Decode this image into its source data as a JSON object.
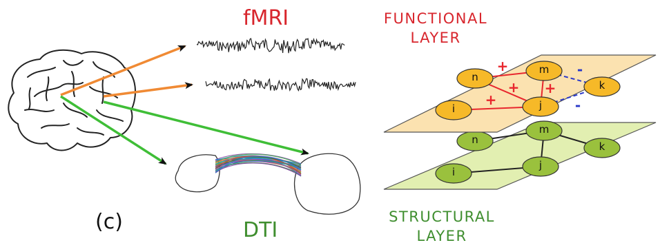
{
  "labels": {
    "fmri": "fMRI",
    "functional_line1": "FUNCTIONAL",
    "functional_line2": "LAYER",
    "structural_line1": "STRUCTURAL",
    "structural_line2": "LAYER",
    "dti": "DTI",
    "panel": "(c)"
  },
  "functional_layer": {
    "nodes": [
      "n",
      "m",
      "k",
      "i",
      "j"
    ],
    "edge_signs": [
      "+",
      "+",
      "+",
      "+",
      "-",
      "-"
    ]
  },
  "structural_layer": {
    "nodes": [
      "n",
      "m",
      "k",
      "i",
      "j"
    ]
  },
  "colors": {
    "red_text": "#d8262d",
    "green_text": "#3f8e2f",
    "functional_plane": "#fbe2b0",
    "structural_plane": "#e2efb1",
    "functional_node": "#f6b928",
    "structural_node": "#9ac13d",
    "positive_edge": "#e8262d",
    "negative_edge": "#2b39c9",
    "arrow_orange": "#f08a34",
    "arrow_green": "#3fbe37"
  }
}
